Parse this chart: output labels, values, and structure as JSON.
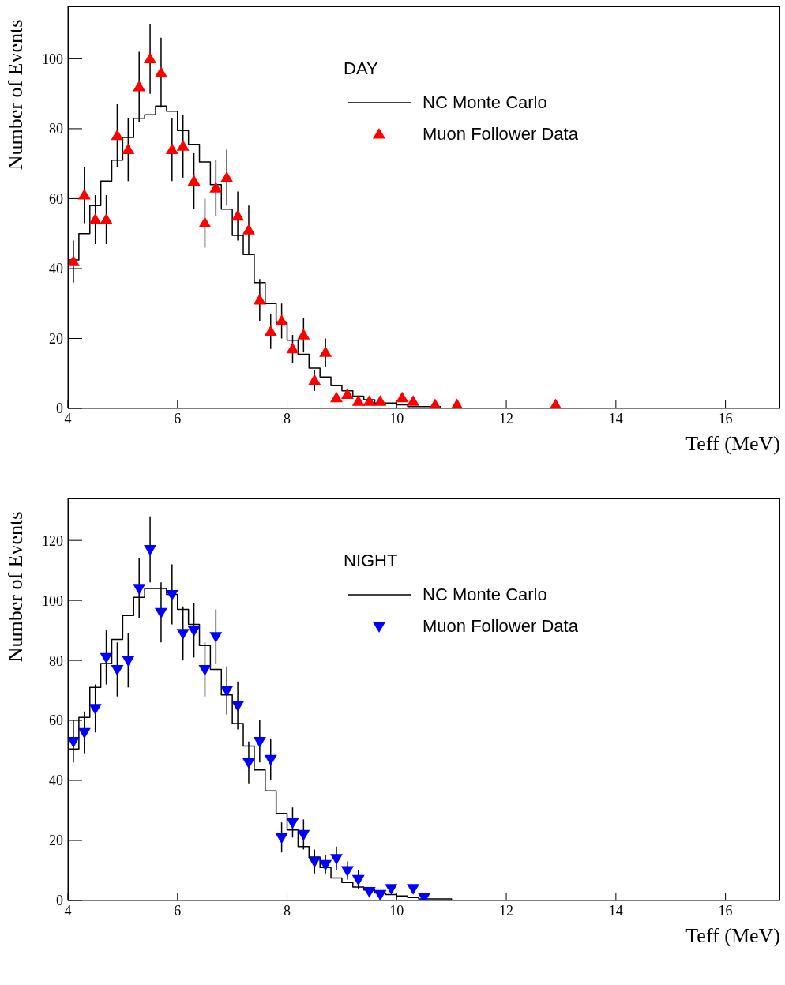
{
  "chart_data": [
    {
      "type": "scatter",
      "legend_title": "DAY",
      "xlabel": "Teff (MeV)",
      "ylabel": "Number of Events",
      "xlim": [
        4,
        17
      ],
      "xticks": [
        4,
        6,
        8,
        10,
        12,
        14,
        16
      ],
      "ylim": [
        0,
        115
      ],
      "yticks": [
        0,
        20,
        40,
        60,
        80,
        100
      ],
      "legend": "top right",
      "grid": false,
      "series": [
        {
          "type": "step",
          "name": "NC Monte Carlo",
          "color": "#000000",
          "x": [
            4.0,
            4.2,
            4.4,
            4.6,
            4.8,
            5.0,
            5.2,
            5.4,
            5.6,
            5.8,
            6.0,
            6.2,
            6.4,
            6.6,
            6.8,
            7.0,
            7.2,
            7.4,
            7.6,
            7.8,
            8.0,
            8.2,
            8.4,
            8.6,
            8.8,
            9.0,
            9.2,
            9.4,
            9.6,
            9.8,
            10.0,
            10.2,
            10.4,
            10.6,
            10.8,
            11.0,
            11.2,
            11.4,
            11.6,
            11.8
          ],
          "values": [
            42.5,
            50,
            58,
            65,
            71,
            77.5,
            83,
            84,
            86.5,
            85,
            79.5,
            75.5,
            70.5,
            64,
            57,
            49.5,
            44,
            36,
            30,
            24.5,
            19.5,
            15.5,
            11.5,
            9,
            6.5,
            5,
            3.5,
            2.5,
            1.5,
            1.5,
            1,
            0.5,
            0.5,
            0.5,
            0,
            0,
            0,
            0,
            0,
            0
          ]
        },
        {
          "name": "Muon Follower Data",
          "color": "#ff0000",
          "marker": "triangle",
          "x": [
            4.1,
            4.3,
            4.5,
            4.7,
            4.9,
            5.1,
            5.3,
            5.5,
            5.7,
            5.9,
            6.1,
            6.3,
            6.5,
            6.7,
            6.9,
            7.1,
            7.3,
            7.5,
            7.7,
            7.9,
            8.1,
            8.3,
            8.5,
            8.7,
            8.9,
            9.1,
            9.3,
            9.5,
            9.7,
            10.1,
            10.3,
            10.7,
            11.1,
            12.9
          ],
          "values": [
            42,
            61,
            54,
            54,
            78,
            74,
            92,
            100,
            96,
            74,
            75,
            65,
            53,
            63,
            66,
            55,
            51,
            31,
            22,
            25,
            17,
            21,
            8,
            16,
            3,
            4,
            2,
            2,
            2,
            3,
            2,
            1,
            1,
            1
          ],
          "errors": [
            6,
            8,
            7,
            7,
            9,
            9,
            10,
            10,
            10,
            9,
            9,
            8,
            7,
            8,
            8,
            7,
            7,
            6,
            5,
            5,
            4,
            5,
            3,
            4,
            null,
            null,
            null,
            null,
            null,
            null,
            null,
            null,
            null,
            null
          ]
        }
      ]
    },
    {
      "type": "scatter",
      "legend_title": "NIGHT",
      "xlabel": "Teff (MeV)",
      "ylabel": "Number of Events",
      "xlim": [
        4,
        17
      ],
      "xticks": [
        4,
        6,
        8,
        10,
        12,
        14,
        16
      ],
      "ylim": [
        0,
        134
      ],
      "yticks": [
        0,
        20,
        40,
        60,
        80,
        100,
        120
      ],
      "legend": "top right",
      "grid": false,
      "series": [
        {
          "type": "step",
          "name": "NC Monte Carlo",
          "color": "#000000",
          "x": [
            4.0,
            4.2,
            4.4,
            4.6,
            4.8,
            5.0,
            5.2,
            5.4,
            5.6,
            5.8,
            6.0,
            6.2,
            6.4,
            6.6,
            6.8,
            7.0,
            7.2,
            7.4,
            7.6,
            7.8,
            8.0,
            8.2,
            8.4,
            8.6,
            8.8,
            9.0,
            9.2,
            9.4,
            9.6,
            9.8,
            10.0,
            10.2,
            10.4,
            10.6,
            10.8,
            11.0,
            11.2,
            11.4
          ],
          "values": [
            50.5,
            61,
            71,
            79,
            87,
            95,
            101,
            104,
            104,
            102,
            97,
            92,
            85,
            77,
            68.5,
            59,
            51.5,
            43.5,
            36.5,
            29,
            23.5,
            18,
            14.5,
            11,
            7.5,
            6,
            4.5,
            3.5,
            2.5,
            2,
            1.5,
            1,
            0.5,
            0.5,
            0.5,
            0,
            0,
            0
          ]
        },
        {
          "name": "Muon Follower Data",
          "color": "#0000ff",
          "marker": "triangle-down",
          "x": [
            4.1,
            4.3,
            4.5,
            4.7,
            4.9,
            5.1,
            5.3,
            5.5,
            5.7,
            5.9,
            6.1,
            6.3,
            6.5,
            6.7,
            6.9,
            7.1,
            7.3,
            7.5,
            7.7,
            7.9,
            8.1,
            8.3,
            8.5,
            8.7,
            8.9,
            9.1,
            9.3,
            9.5,
            9.7,
            9.9,
            10.3,
            10.5
          ],
          "values": [
            53,
            56,
            64,
            81,
            77,
            80,
            104,
            117,
            96,
            102,
            89,
            90,
            77,
            88,
            70,
            65,
            46,
            53,
            47,
            21,
            26,
            22,
            13,
            12,
            14,
            10,
            7,
            3,
            2,
            4,
            4,
            1
          ],
          "errors": [
            7,
            7,
            8,
            9,
            9,
            9,
            10,
            11,
            10,
            10,
            9,
            9,
            9,
            9,
            8,
            8,
            7,
            7,
            7,
            5,
            5,
            5,
            4,
            3,
            4,
            3,
            3,
            null,
            null,
            null,
            null,
            null
          ]
        }
      ]
    }
  ]
}
